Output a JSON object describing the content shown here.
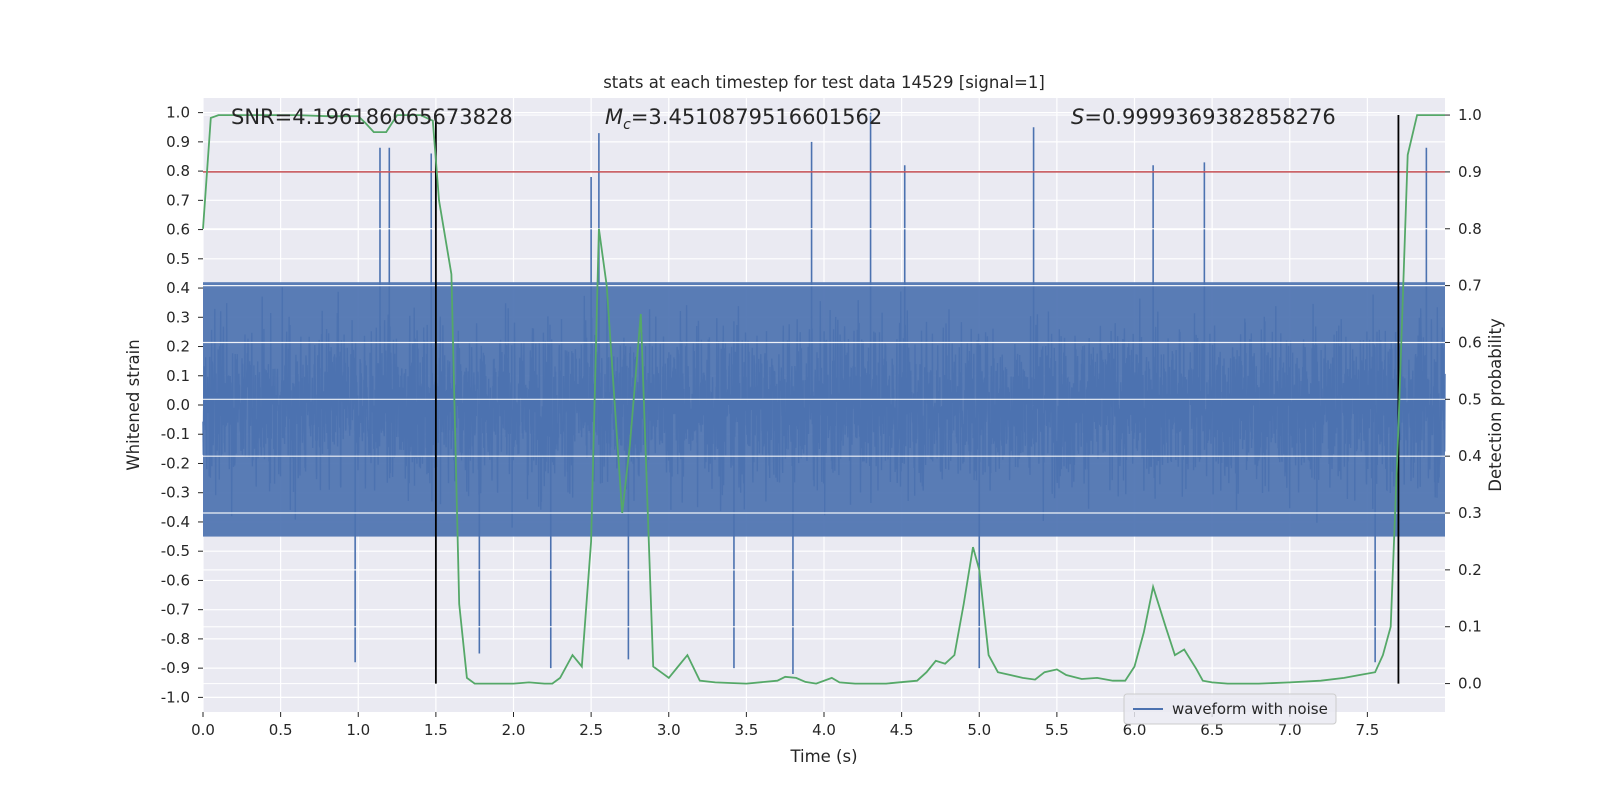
{
  "chart_data": {
    "type": "line",
    "title": "stats at each timestep for test data 14529 [signal=1]",
    "xlabel": "Time (s)",
    "ylabel": "Whitened strain",
    "y2label": "Detection probability",
    "xlim": [
      0.0,
      8.0
    ],
    "ylim": [
      -1.05,
      1.05
    ],
    "y2lim": [
      -0.05,
      1.03
    ],
    "xticks": [
      "0.0",
      "0.5",
      "1.0",
      "1.5",
      "2.0",
      "2.5",
      "3.0",
      "3.5",
      "4.0",
      "4.5",
      "5.0",
      "5.5",
      "6.0",
      "6.5",
      "7.0",
      "7.5"
    ],
    "yticks": [
      "1.0",
      "0.9",
      "0.8",
      "0.7",
      "0.6",
      "0.5",
      "0.4",
      "0.3",
      "0.2",
      "0.1",
      "0.0",
      "-0.1",
      "-0.2",
      "-0.3",
      "-0.4",
      "-0.5",
      "-0.6",
      "-0.7",
      "-0.8",
      "-0.9",
      "-1.0"
    ],
    "y2ticks": [
      "1.0",
      "0.9",
      "0.8",
      "0.7",
      "0.6",
      "0.5",
      "0.4",
      "0.3",
      "0.2",
      "0.1",
      "0.0"
    ],
    "annotations": {
      "snr": "SNR=4.196186065673828",
      "mc_symbol": "M",
      "mc_sub": "c",
      "mc_value": "=3.4510879516601562",
      "s_symbol": "S",
      "s_value": "=0.9999369382858276"
    },
    "threshold_probability": 0.9,
    "vertical_lines_x": [
      1.5,
      7.7
    ],
    "series": [
      {
        "name": "waveform with noise",
        "axis": "left",
        "color": "#4c72b0",
        "description": "noisy whitened strain, typical envelope about ±0.45 with spikes up to about 1.0 and down to -0.9",
        "spikes": [
          {
            "x": 1.14,
            "y": 0.88
          },
          {
            "x": 1.2,
            "y": 0.88
          },
          {
            "x": 1.47,
            "y": 0.86
          },
          {
            "x": 2.55,
            "y": 0.93
          },
          {
            "x": 2.5,
            "y": 0.78
          },
          {
            "x": 3.92,
            "y": 0.9
          },
          {
            "x": 4.3,
            "y": 1.0
          },
          {
            "x": 4.52,
            "y": 0.82
          },
          {
            "x": 5.35,
            "y": 0.95
          },
          {
            "x": 6.12,
            "y": 0.82
          },
          {
            "x": 6.45,
            "y": 0.83
          },
          {
            "x": 7.88,
            "y": 0.88
          },
          {
            "x": 0.98,
            "y": -0.88
          },
          {
            "x": 2.24,
            "y": -0.9
          },
          {
            "x": 3.42,
            "y": -0.9
          },
          {
            "x": 3.8,
            "y": -0.92
          },
          {
            "x": 5.0,
            "y": -0.9
          },
          {
            "x": 7.55,
            "y": -0.88
          },
          {
            "x": 1.78,
            "y": -0.85
          },
          {
            "x": 2.74,
            "y": -0.87
          }
        ]
      },
      {
        "name": "detection probability",
        "axis": "right",
        "color": "#55a868",
        "x": [
          0.0,
          0.05,
          0.1,
          0.2,
          0.4,
          0.6,
          0.8,
          1.0,
          1.05,
          1.1,
          1.18,
          1.25,
          1.4,
          1.48,
          1.52,
          1.6,
          1.65,
          1.7,
          1.75,
          1.8,
          1.9,
          2.0,
          2.1,
          2.2,
          2.25,
          2.3,
          2.38,
          2.44,
          2.5,
          2.55,
          2.6,
          2.65,
          2.7,
          2.75,
          2.82,
          2.9,
          2.95,
          3.0,
          3.06,
          3.12,
          3.2,
          3.3,
          3.5,
          3.7,
          3.75,
          3.82,
          3.88,
          3.95,
          4.05,
          4.1,
          4.2,
          4.4,
          4.6,
          4.66,
          4.72,
          4.78,
          4.84,
          4.9,
          4.96,
          5.0,
          5.06,
          5.12,
          5.2,
          5.28,
          5.36,
          5.42,
          5.5,
          5.56,
          5.66,
          5.76,
          5.86,
          5.94,
          6.0,
          6.06,
          6.12,
          6.2,
          6.26,
          6.32,
          6.4,
          6.44,
          6.5,
          6.6,
          6.8,
          7.0,
          7.2,
          7.35,
          7.45,
          7.55,
          7.6,
          7.65,
          7.7,
          7.76,
          7.82,
          7.88,
          7.92,
          8.0
        ],
        "y": [
          0.8,
          0.995,
          1.0,
          1.0,
          1.0,
          1.0,
          0.998,
          0.998,
          0.985,
          0.97,
          0.97,
          1.0,
          1.0,
          0.99,
          0.85,
          0.72,
          0.14,
          0.01,
          0.0,
          0.0,
          0.0,
          0.0,
          0.002,
          0.0,
          0.0,
          0.01,
          0.05,
          0.03,
          0.25,
          0.8,
          0.7,
          0.5,
          0.3,
          0.42,
          0.65,
          0.03,
          0.02,
          0.01,
          0.03,
          0.05,
          0.005,
          0.002,
          0.0,
          0.005,
          0.012,
          0.01,
          0.003,
          0.0,
          0.01,
          0.002,
          0.0,
          0.0,
          0.005,
          0.02,
          0.04,
          0.035,
          0.05,
          0.14,
          0.24,
          0.2,
          0.05,
          0.02,
          0.015,
          0.01,
          0.007,
          0.02,
          0.025,
          0.015,
          0.008,
          0.01,
          0.005,
          0.005,
          0.03,
          0.09,
          0.17,
          0.1,
          0.05,
          0.06,
          0.025,
          0.005,
          0.002,
          0.0,
          0.0,
          0.002,
          0.005,
          0.01,
          0.015,
          0.02,
          0.05,
          0.1,
          0.45,
          0.93,
          1.0,
          1.0,
          1.0,
          1.0
        ]
      }
    ],
    "legend": {
      "label": "waveform with noise",
      "position": "lower-right"
    }
  },
  "colors": {
    "plot_bg": "#eaeaf2",
    "grid": "#ffffff",
    "waveform": "#4c72b0",
    "probability": "#55a868",
    "threshold": "#c44e52",
    "vline": "#000000"
  }
}
